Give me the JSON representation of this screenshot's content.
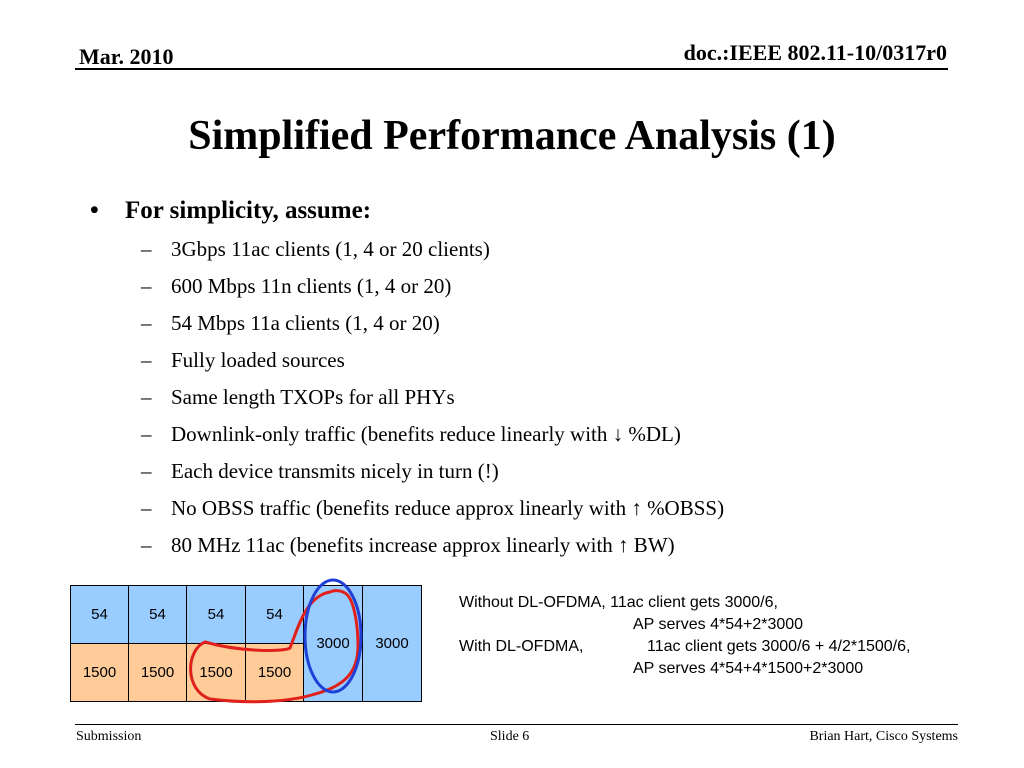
{
  "header": {
    "date": "Mar. 2010",
    "doc_id": "doc.:IEEE 802.11-10/0317r0"
  },
  "title": "Simplified Performance Analysis (1)",
  "bullets": {
    "marker": "•",
    "main": "For simplicity, assume:",
    "sub_marker": "–",
    "items": [
      "3Gbps 11ac clients (1, 4 or 20 clients)",
      "600 Mbps 11n clients (1, 4 or 20)",
      "54 Mbps 11a clients (1, 4 or 20)",
      "Fully loaded sources",
      "Same length TXOPs for all PHYs",
      "Downlink-only traffic (benefits reduce linearly with ↓ %DL)",
      "Each device transmits nicely in turn (!)",
      "No OBSS traffic (benefits reduce approx linearly with ↑ %OBSS)",
      "80 MHz 11ac (benefits increase approx linearly with ↑ BW)"
    ]
  },
  "diagram": {
    "top_row": [
      "54",
      "54",
      "54",
      "54"
    ],
    "bottom_row": [
      "1500",
      "1500",
      "1500",
      "1500"
    ],
    "col5": "3000",
    "col6": "3000",
    "colors": {
      "blue_cell": "#99ccff",
      "tan_cell": "#ffcc99",
      "red_outline": "#e0201b",
      "blue_outline": "#1f3fd6"
    }
  },
  "notes": {
    "line1": "Without DL-OFDMA, 11ac client gets 3000/6,",
    "line2": "AP serves 4*54+2*3000",
    "line3_label": "With DL-OFDMA,",
    "line3_value": "11ac client gets 3000/6 + 4/2*1500/6,",
    "line4": "AP serves 4*54+4*1500+2*3000"
  },
  "footer": {
    "left": "Submission",
    "center": "Slide 6",
    "right": "Brian Hart, Cisco Systems"
  }
}
